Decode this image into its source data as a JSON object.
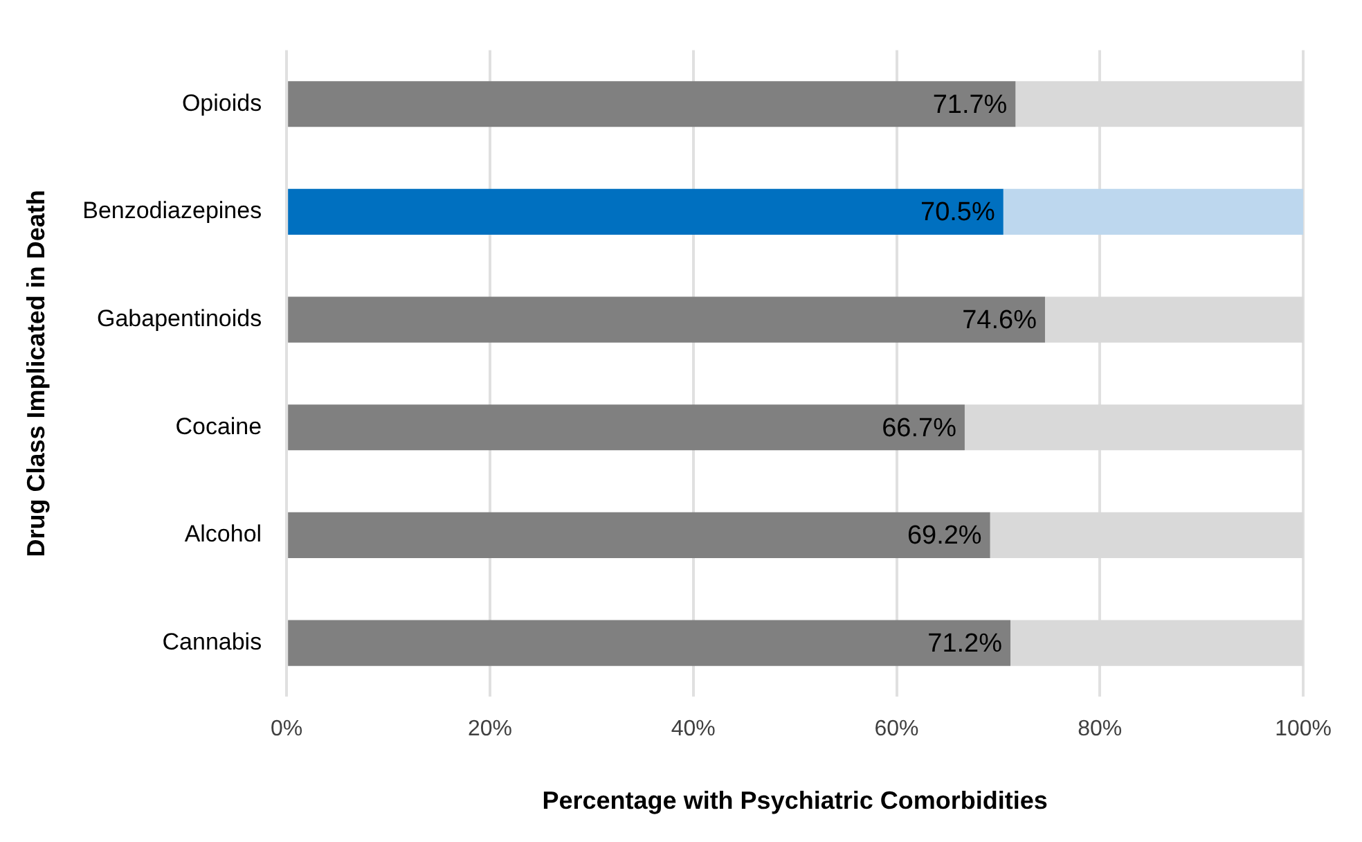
{
  "chart_data": {
    "type": "bar",
    "orientation": "horizontal",
    "stacked": true,
    "xlabel": "Percentage with Psychiatric Comorbidities",
    "ylabel": "Drug Class Implicated in Death",
    "categories": [
      "Opioids",
      "Benzodiazepines",
      "Gabapentinoids",
      "Cocaine",
      "Alcohol",
      "Cannabis"
    ],
    "series": [
      {
        "values": [
          71.7,
          70.5,
          74.6,
          66.7,
          69.2,
          71.2
        ],
        "colors": [
          "#808080",
          "#0070c0",
          "#808080",
          "#808080",
          "#808080",
          "#808080"
        ],
        "value_labels": [
          "71.7%",
          "70.5%",
          "74.6%",
          "66.7%",
          "69.2%",
          "71.2%"
        ]
      },
      {
        "values": [
          28.3,
          29.5,
          25.4,
          33.3,
          30.8,
          28.8
        ],
        "colors": [
          "#d9d9d9",
          "#bdd7ee",
          "#d9d9d9",
          "#d9d9d9",
          "#d9d9d9",
          "#d9d9d9"
        ]
      }
    ],
    "xlim": [
      0,
      100
    ],
    "xticks": [
      {
        "value": 0,
        "label": "0%"
      },
      {
        "value": 20,
        "label": "20%"
      },
      {
        "value": 40,
        "label": "40%"
      },
      {
        "value": 60,
        "label": "60%"
      },
      {
        "value": 80,
        "label": "80%"
      },
      {
        "value": 100,
        "label": "100%"
      }
    ],
    "grid": "x"
  }
}
